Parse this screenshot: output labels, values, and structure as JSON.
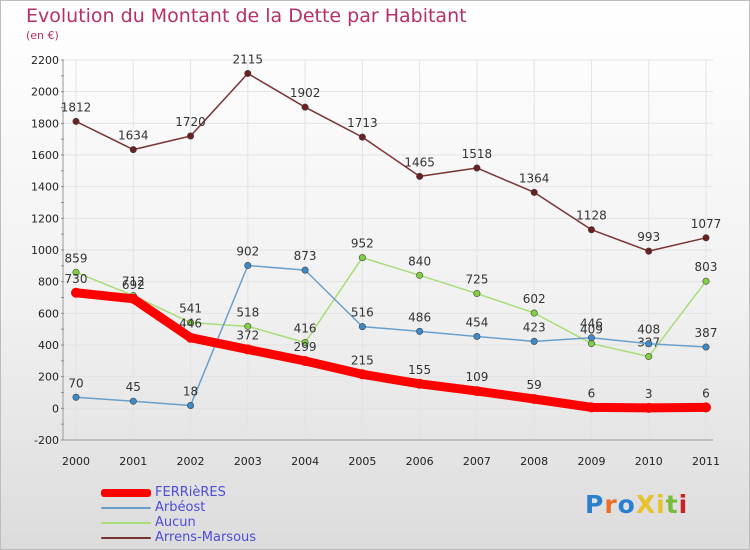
{
  "header": {
    "title": "Evolution du Montant de la Dette par Habitant",
    "subtitle": "(en €)"
  },
  "colors": {
    "title": "#b5306a",
    "legend_text": "#4d4dd6",
    "grid": "#e3e3e3",
    "axis_text": "#222222"
  },
  "logo": {
    "text": "ProXiti",
    "letter_colors": [
      "#2b7fd0",
      "#e8702a",
      "#2b7fd0",
      "#e8c22a",
      "#e8c22a",
      "#7bbd3a",
      "#cc2222"
    ]
  },
  "chart_data": {
    "type": "line",
    "x": [
      "2000",
      "2001",
      "2002",
      "2003",
      "2004",
      "2005",
      "2006",
      "2007",
      "2008",
      "2009",
      "2010",
      "2011"
    ],
    "ylim": [
      -200,
      2200
    ],
    "yticks": [
      -200,
      0,
      200,
      400,
      600,
      800,
      1000,
      1200,
      1400,
      1600,
      1800,
      2000,
      2200
    ],
    "grid": true,
    "legend_position": "bottom-left",
    "series": [
      {
        "name": "FERRièRES",
        "color": "#ff0000",
        "marker": "#ff0000",
        "values": [
          730,
          692,
          446,
          372,
          299,
          215,
          155,
          109,
          59,
          6,
          3,
          6
        ],
        "labels": [
          "730",
          "692",
          "446",
          "372",
          "299",
          "215",
          "155",
          "109",
          "59",
          "6",
          "3",
          "6"
        ]
      },
      {
        "name": "Arbéost",
        "color": "#6a9fcb",
        "marker": "#3d8ac9",
        "values": [
          70,
          45,
          18,
          902,
          873,
          516,
          486,
          454,
          423,
          446,
          408,
          387
        ],
        "labels": [
          "70",
          "45",
          "18",
          "902",
          "873",
          "516",
          "486",
          "454",
          "423",
          "446",
          "408",
          "387"
        ]
      },
      {
        "name": "Aucun",
        "color": "#a8dd7a",
        "marker": "#7fd141",
        "values": [
          859,
          712,
          541,
          518,
          416,
          952,
          840,
          725,
          602,
          409,
          327,
          803
        ],
        "labels": [
          "859",
          "712",
          "541",
          "518",
          "416",
          "952",
          "840",
          "725",
          "602",
          "409",
          "327",
          "803"
        ]
      },
      {
        "name": "Arrens-Marsous",
        "color": "#7a3333",
        "marker": "#6b1f1f",
        "values": [
          1812,
          1634,
          1720,
          2115,
          1902,
          1713,
          1465,
          1518,
          1364,
          1128,
          993,
          1077
        ],
        "labels": [
          "1812",
          "1634",
          "1720",
          "2115",
          "1902",
          "1713",
          "1465",
          "1518",
          "1364",
          "1128",
          "993",
          "1077"
        ]
      }
    ]
  }
}
